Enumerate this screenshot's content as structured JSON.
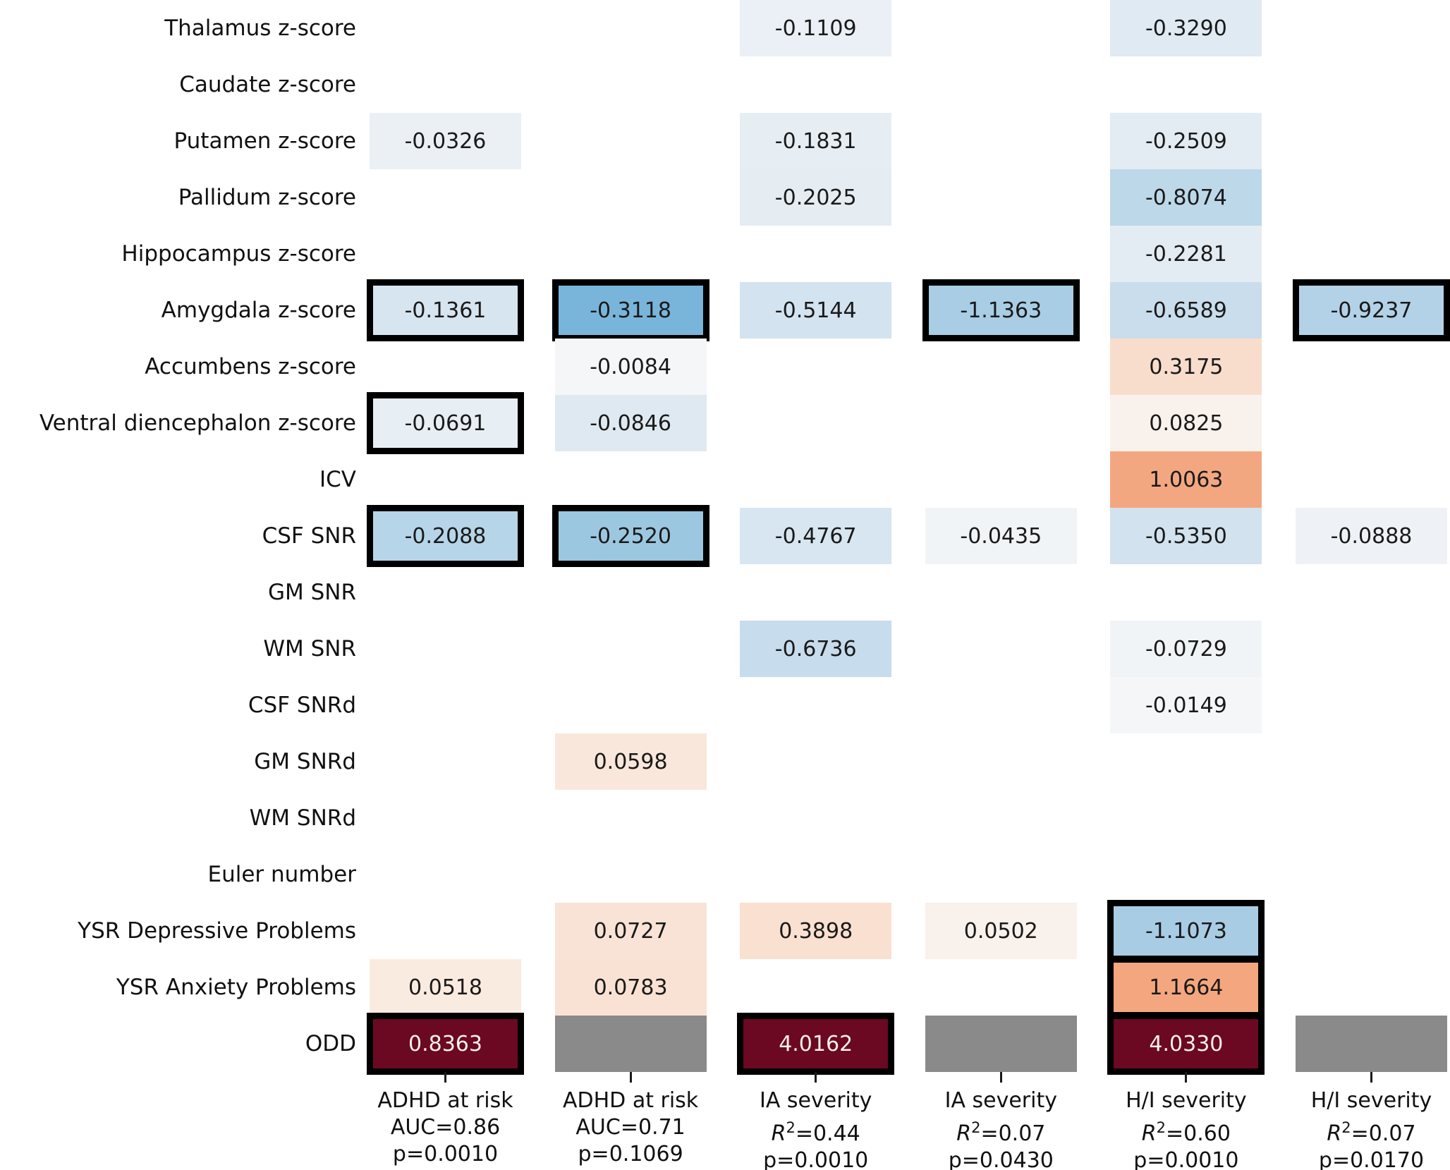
{
  "figure_title": "",
  "colors": {
    "strong_positive": "#6b0822",
    "missing_gray": "#8a8a8a",
    "strong_negative_example": "#79b5da",
    "positive_orange_example": "#f3a781",
    "cell_border": "#000000",
    "text_dark": "#1a1a1a",
    "text_light_on_dark": "#f8efeb",
    "background": "#ffffff"
  },
  "chart_data": {
    "type": "heatmap",
    "description": "Coefficient heatmap: brain/quality/behavior predictors (rows) vs outcome models (columns). Blue = negative, red/orange = positive, dark maroon = large positive, gray = no value shown, thick black border = highlighted cell.",
    "legend_position": "none",
    "grid": "off",
    "rows": [
      "Thalamus z-score",
      "Caudate z-score",
      "Putamen z-score",
      "Pallidum z-score",
      "Hippocampus z-score",
      "Amygdala z-score",
      "Accumbens z-score",
      "Ventral diencephalon z-score",
      "ICV",
      "CSF SNR",
      "GM SNR",
      "WM SNR",
      "CSF SNRd",
      "GM SNRd",
      "WM SNRd",
      "Euler number",
      "YSR Depressive Problems",
      "YSR Anxiety Problems",
      "ODD"
    ],
    "columns": [
      {
        "name": "ADHD at risk",
        "stat_type": "AUC",
        "stat_value": "0.86",
        "p_label": "p=0.0010"
      },
      {
        "name": "ADHD at risk",
        "stat_type": "AUC",
        "stat_value": "0.71",
        "p_label": "p=0.1069"
      },
      {
        "name": "IA severity",
        "stat_type": "R2",
        "stat_value": "0.44",
        "p_label": "p=0.0010"
      },
      {
        "name": "IA severity",
        "stat_type": "R2",
        "stat_value": "0.07",
        "p_label": "p=0.0430"
      },
      {
        "name": "H/I severity",
        "stat_type": "R2",
        "stat_value": "0.60",
        "p_label": "p=0.0010"
      },
      {
        "name": "H/I severity",
        "stat_type": "R2",
        "stat_value": "0.07",
        "p_label": "p=0.0170"
      }
    ],
    "cells": [
      {
        "r": 0,
        "c": 2,
        "v": "-0.1109",
        "bg": "#eaf0f5",
        "b": false
      },
      {
        "r": 0,
        "c": 4,
        "v": "-0.3290",
        "bg": "#dfeaf2",
        "b": false
      },
      {
        "r": 2,
        "c": 0,
        "v": "-0.0326",
        "bg": "#ebf0f5",
        "b": false
      },
      {
        "r": 2,
        "c": 2,
        "v": "-0.1831",
        "bg": "#e6eef4",
        "b": false
      },
      {
        "r": 2,
        "c": 4,
        "v": "-0.2509",
        "bg": "#e3ecf3",
        "b": false
      },
      {
        "r": 3,
        "c": 2,
        "v": "-0.2025",
        "bg": "#e5edf3",
        "b": false
      },
      {
        "r": 3,
        "c": 4,
        "v": "-0.8074",
        "bg": "#bdd8e9",
        "b": false
      },
      {
        "r": 4,
        "c": 4,
        "v": "-0.2281",
        "bg": "#e4ecf3",
        "b": false
      },
      {
        "r": 5,
        "c": 0,
        "v": "-0.1361",
        "bg": "#d6e5f0",
        "b": true
      },
      {
        "r": 5,
        "c": 1,
        "v": "-0.3118",
        "bg": "#79b5da",
        "b": true
      },
      {
        "r": 5,
        "c": 2,
        "v": "-0.5144",
        "bg": "#d3e3ef",
        "b": false
      },
      {
        "r": 5,
        "c": 3,
        "v": "-1.1363",
        "bg": "#a9cde4",
        "b": true
      },
      {
        "r": 5,
        "c": 4,
        "v": "-0.6589",
        "bg": "#c9ddec",
        "b": false
      },
      {
        "r": 5,
        "c": 5,
        "v": "-0.9237",
        "bg": "#b3d2e7",
        "b": true
      },
      {
        "r": 6,
        "c": 1,
        "v": "-0.0084",
        "bg": "#f5f6f8",
        "b": false
      },
      {
        "r": 6,
        "c": 4,
        "v": "0.3175",
        "bg": "#f9ddcc",
        "b": false
      },
      {
        "r": 7,
        "c": 0,
        "v": "-0.0691",
        "bg": "#e7eef4",
        "b": true
      },
      {
        "r": 7,
        "c": 1,
        "v": "-0.0846",
        "bg": "#dee9f1",
        "b": false
      },
      {
        "r": 7,
        "c": 4,
        "v": "0.0825",
        "bg": "#f8f1ec",
        "b": false
      },
      {
        "r": 8,
        "c": 4,
        "v": "1.0063",
        "bg": "#f3a781",
        "b": false
      },
      {
        "r": 9,
        "c": 0,
        "v": "-0.2088",
        "bg": "#b7d5e8",
        "b": true
      },
      {
        "r": 9,
        "c": 1,
        "v": "-0.2520",
        "bg": "#9cc7e0",
        "b": true
      },
      {
        "r": 9,
        "c": 2,
        "v": "-0.4767",
        "bg": "#d7e6f0",
        "b": false
      },
      {
        "r": 9,
        "c": 3,
        "v": "-0.0435",
        "bg": "#f1f4f7",
        "b": false
      },
      {
        "r": 9,
        "c": 4,
        "v": "-0.5350",
        "bg": "#d2e2ee",
        "b": false
      },
      {
        "r": 9,
        "c": 5,
        "v": "-0.0888",
        "bg": "#eef2f6",
        "b": false
      },
      {
        "r": 11,
        "c": 2,
        "v": "-0.6736",
        "bg": "#c7dcec",
        "b": false
      },
      {
        "r": 11,
        "c": 4,
        "v": "-0.0729",
        "bg": "#f1f4f6",
        "b": false
      },
      {
        "r": 12,
        "c": 4,
        "v": "-0.0149",
        "bg": "#f5f6f7",
        "b": false
      },
      {
        "r": 13,
        "c": 1,
        "v": "0.0598",
        "bg": "#f9e7db",
        "b": false
      },
      {
        "r": 16,
        "c": 1,
        "v": "0.0727",
        "bg": "#f9e3d6",
        "b": false
      },
      {
        "r": 16,
        "c": 2,
        "v": "0.3898",
        "bg": "#fae0d1",
        "b": false
      },
      {
        "r": 16,
        "c": 3,
        "v": "0.0502",
        "bg": "#f9f1eb",
        "b": false
      },
      {
        "r": 16,
        "c": 4,
        "v": "-1.1073",
        "bg": "#a8cce4",
        "b": true
      },
      {
        "r": 17,
        "c": 0,
        "v": "0.0518",
        "bg": "#faebe1",
        "b": false
      },
      {
        "r": 17,
        "c": 1,
        "v": "0.0783",
        "bg": "#f9e2d4",
        "b": false
      },
      {
        "r": 17,
        "c": 4,
        "v": "1.1664",
        "bg": "#f4a77e",
        "b": true
      },
      {
        "r": 18,
        "c": 0,
        "v": "0.8363",
        "bg": "#6b0822",
        "b": true,
        "light": true
      },
      {
        "r": 18,
        "c": 1,
        "v": "",
        "bg": "#8a8a8a",
        "b": false
      },
      {
        "r": 18,
        "c": 2,
        "v": "4.0162",
        "bg": "#6b0822",
        "b": true,
        "light": true
      },
      {
        "r": 18,
        "c": 3,
        "v": "",
        "bg": "#8a8a8a",
        "b": false
      },
      {
        "r": 18,
        "c": 4,
        "v": "4.0330",
        "bg": "#6b0822",
        "b": true,
        "light": true
      },
      {
        "r": 18,
        "c": 5,
        "v": "",
        "bg": "#8a8a8a",
        "b": false
      }
    ]
  }
}
